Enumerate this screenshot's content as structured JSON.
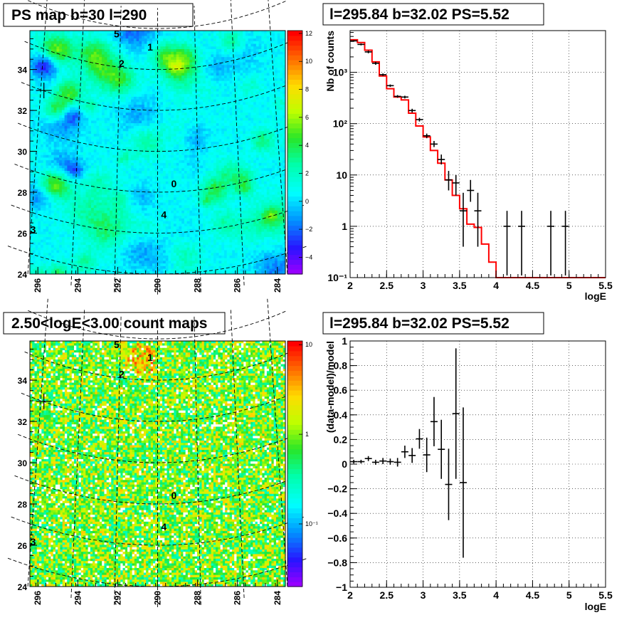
{
  "colors": {
    "rootOrange": "#ff6600",
    "green": "#33cc33",
    "cyan": "#00ffff",
    "red": "#ff0000",
    "black": "#000000"
  },
  "panels": {
    "map1": {
      "title": "PS map b=30 l=290"
    },
    "spec": {
      "title": "l=295.84 b=32.02 PS=5.52"
    },
    "map2": {
      "title": "2.50<logE<3.00 count maps"
    },
    "resid": {
      "title": "l=295.84 b=32.02 PS=5.52"
    }
  },
  "chart_data": [
    {
      "type": "heatmap",
      "title": "PS map b=30 l=290",
      "x_ticks": [
        "296",
        "294",
        "292",
        "290",
        "288",
        "286",
        "284"
      ],
      "x_tick_values": [
        296,
        294,
        292,
        290,
        288,
        286,
        284
      ],
      "x_range": [
        296.4,
        283.6
      ],
      "y_ticks": [
        "24",
        "26",
        "28",
        "30",
        "32",
        "34"
      ],
      "y_tick_values": [
        24,
        26,
        28,
        30,
        32,
        34
      ],
      "y_range": [
        24,
        35.9
      ],
      "colorbar_ticks": [
        "12",
        "10",
        "8",
        "6",
        "4",
        "2",
        "0",
        "−2",
        "−4"
      ],
      "colorbar_tick_values": [
        12,
        10,
        8,
        6,
        4,
        2,
        0,
        -2,
        -4
      ],
      "colorbar_range": [
        -5.2,
        12.2
      ],
      "sources": [
        {
          "label": "5",
          "l": 292.2,
          "b": 35.6
        },
        {
          "label": "1",
          "l": 290.4,
          "b": 35.1
        },
        {
          "label": "2",
          "l": 291.9,
          "b": 34.2
        },
        {
          "label": "0",
          "l": 289.2,
          "b": 28.4
        },
        {
          "label": "4",
          "l": 289.7,
          "b": 26.9
        },
        {
          "label": "3",
          "l": 295.9,
          "b": 25.2
        }
      ],
      "marker": {
        "l": 295.84,
        "b": 32.02
      }
    },
    {
      "type": "scatter",
      "title": "l=295.84 b=32.02 PS=5.52",
      "xlabel": "logE",
      "ylabel": "Nb of counts",
      "yscale": "log",
      "xlim": [
        2,
        5.5
      ],
      "ylim": [
        0.1,
        6500
      ],
      "x_ticks": [
        "2",
        "2.5",
        "3",
        "3.5",
        "4",
        "4.5",
        "5",
        "5.5"
      ],
      "x_tick_values": [
        2,
        2.5,
        3,
        3.5,
        4,
        4.5,
        5,
        5.5
      ],
      "y_ticks": [
        "10⁻¹",
        "1",
        "10",
        "10²",
        "10³"
      ],
      "y_tick_values": [
        0.1,
        1,
        10,
        100,
        1000
      ],
      "grid": true,
      "series": [
        {
          "style": "error_points",
          "x": [
            2.05,
            2.15,
            2.25,
            2.35,
            2.45,
            2.55,
            2.65,
            2.75,
            2.85,
            2.95,
            3.05,
            3.15,
            3.25,
            3.35,
            3.45,
            3.55,
            3.65,
            3.75,
            4.15,
            4.35,
            4.75,
            4.95
          ],
          "y": [
            4100,
            3500,
            2500,
            1500,
            900,
            550,
            340,
            330,
            180,
            120,
            58,
            40,
            20,
            8,
            7,
            2,
            5,
            2,
            1,
            1,
            1,
            1
          ],
          "yerr_low": [
            3950,
            3350,
            2350,
            1400,
            850,
            520,
            320,
            310,
            165,
            110,
            52,
            35,
            16,
            5,
            4,
            0.4,
            3,
            0.4,
            0.11,
            0.11,
            0.11,
            0.11
          ],
          "yerr_high": [
            4250,
            3650,
            2650,
            1600,
            950,
            580,
            360,
            350,
            195,
            130,
            64,
            46,
            25,
            12,
            10,
            4.5,
            8,
            4.5,
            2,
            2,
            2,
            2
          ]
        },
        {
          "style": "step",
          "color": "#ff0000",
          "bin_edges": [
            2.0,
            2.1,
            2.2,
            2.3,
            2.4,
            2.5,
            2.6,
            2.7,
            2.8,
            2.9,
            3.0,
            3.1,
            3.2,
            3.3,
            3.4,
            3.5,
            3.6,
            3.7,
            3.8,
            3.9,
            4.0,
            5.5
          ],
          "values": [
            4300,
            3800,
            2700,
            1600,
            850,
            480,
            330,
            290,
            160,
            90,
            55,
            30,
            17,
            8,
            4,
            2.2,
            1.1,
            0.95,
            0.45,
            0.2,
            0.1
          ]
        }
      ]
    },
    {
      "type": "heatmap",
      "title": "2.50<logE<3.00 count maps",
      "x_ticks": [
        "296",
        "294",
        "292",
        "290",
        "288",
        "286",
        "284"
      ],
      "x_tick_values": [
        296,
        294,
        292,
        290,
        288,
        286,
        284
      ],
      "x_range": [
        296.4,
        283.6
      ],
      "y_ticks": [
        "24",
        "26",
        "28",
        "30",
        "32",
        "34"
      ],
      "y_tick_values": [
        24,
        26,
        28,
        30,
        32,
        34
      ],
      "y_range": [
        24,
        35.9
      ],
      "colorbar_scale": "log",
      "colorbar_ticks": [
        "10",
        "1",
        "10⁻¹"
      ],
      "colorbar_tick_values": [
        10,
        1,
        0.1
      ],
      "colorbar_range": [
        0.02,
        11
      ],
      "sources": [
        {
          "label": "5",
          "l": 292.2,
          "b": 35.6
        },
        {
          "label": "1",
          "l": 290.4,
          "b": 35.1
        },
        {
          "label": "2",
          "l": 291.9,
          "b": 34.2
        },
        {
          "label": "0",
          "l": 289.2,
          "b": 28.4
        },
        {
          "label": "4",
          "l": 289.7,
          "b": 26.9
        },
        {
          "label": "3",
          "l": 295.9,
          "b": 25.2
        }
      ],
      "marker": {
        "l": 295.84,
        "b": 32.02
      }
    },
    {
      "type": "scatter",
      "title": "l=295.84 b=32.02 PS=5.52",
      "xlabel": "logE",
      "ylabel": "(data-model)/model",
      "xlim": [
        2,
        5.5
      ],
      "ylim": [
        -1,
        1
      ],
      "x_ticks": [
        "2",
        "2.5",
        "3",
        "3.5",
        "4",
        "4.5",
        "5",
        "5.5"
      ],
      "x_tick_values": [
        2,
        2.5,
        3,
        3.5,
        4,
        4.5,
        5,
        5.5
      ],
      "y_ticks": [
        "−1",
        "−0.8",
        "−0.6",
        "−0.4",
        "−0.2",
        "0",
        "0.2",
        "0.4",
        "0.6",
        "0.8",
        "1"
      ],
      "y_tick_values": [
        -1,
        -0.8,
        -0.6,
        -0.4,
        -0.2,
        0,
        0.2,
        0.4,
        0.6,
        0.8,
        1
      ],
      "grid": true,
      "series": [
        {
          "style": "error_points",
          "x": [
            2.05,
            2.15,
            2.25,
            2.35,
            2.45,
            2.55,
            2.65,
            2.75,
            2.85,
            2.95,
            3.05,
            3.15,
            3.25,
            3.35,
            3.45,
            3.55
          ],
          "y": [
            0.02,
            0.02,
            0.045,
            0.015,
            0.025,
            0.02,
            0.015,
            0.1,
            0.07,
            0.205,
            0.075,
            0.345,
            0.12,
            -0.165,
            0.41,
            -0.15
          ],
          "yerr": [
            0.015,
            0.015,
            0.02,
            0.02,
            0.025,
            0.025,
            0.035,
            0.05,
            0.06,
            0.08,
            0.14,
            0.2,
            0.24,
            0.29,
            0.53,
            0.61
          ]
        }
      ]
    }
  ]
}
